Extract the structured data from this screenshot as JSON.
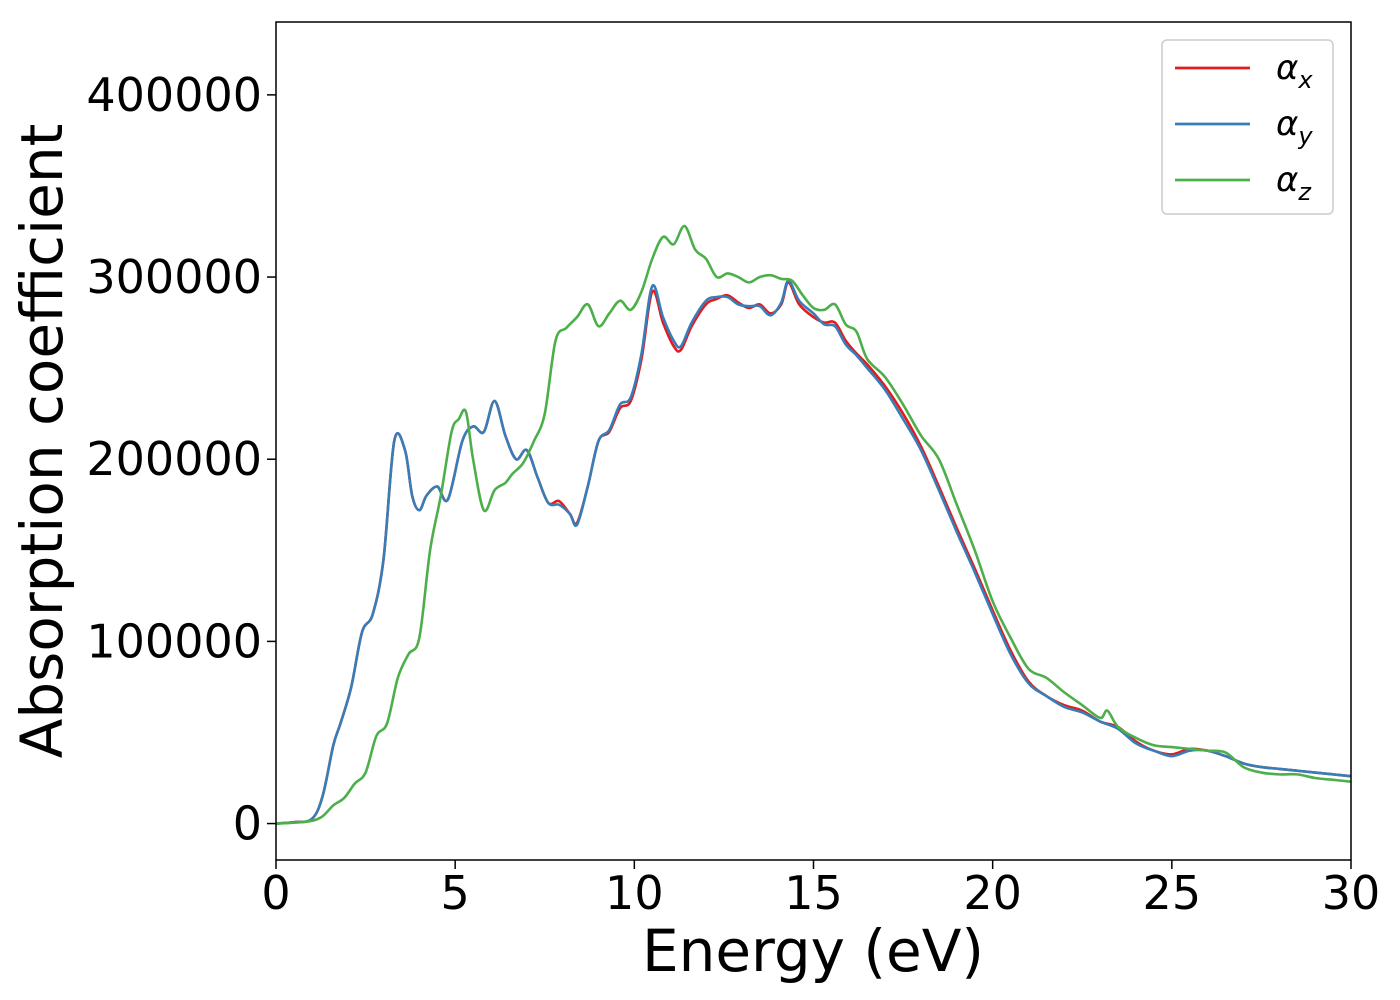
{
  "chart_data": {
    "type": "line",
    "title": "",
    "xlabel": "Energy (eV)",
    "ylabel": "Absorption coefficient",
    "xlim": [
      0,
      30
    ],
    "ylim": [
      -20000,
      440000
    ],
    "xticks": [
      0,
      5,
      10,
      15,
      20,
      25,
      30
    ],
    "xtick_labels": [
      "0",
      "5",
      "10",
      "15",
      "20",
      "25",
      "30"
    ],
    "yticks": [
      0,
      100000,
      200000,
      300000,
      400000
    ],
    "ytick_labels": [
      "0",
      "100000",
      "200000",
      "300000",
      "400000"
    ],
    "grid": false,
    "legend_position": "top-right",
    "series": [
      {
        "name": "αx",
        "symbol": "α",
        "subscript": "x",
        "color": "#e41a1c",
        "x": [
          0,
          0.5,
          1,
          1.3,
          1.6,
          1.8,
          2.1,
          2.4,
          2.7,
          3,
          3.3,
          3.6,
          3.8,
          4,
          4.2,
          4.5,
          4.8,
          5.2,
          5.5,
          5.8,
          6.1,
          6.4,
          6.7,
          7,
          7.3,
          7.6,
          7.9,
          8.2,
          8.4,
          8.7,
          9,
          9.3,
          9.6,
          9.9,
          10.2,
          10.5,
          10.8,
          11.1,
          11.3,
          11.6,
          12,
          12.3,
          12.6,
          12.9,
          13.2,
          13.5,
          13.8,
          14.1,
          14.3,
          14.6,
          15,
          15.3,
          15.6,
          15.9,
          16.2,
          16.5,
          17,
          17.5,
          18,
          18.5,
          19,
          19.5,
          20,
          20.5,
          21,
          21.5,
          22,
          22.5,
          23,
          23.5,
          24,
          24.5,
          25,
          25.5,
          26,
          26.5,
          27,
          27.5,
          28,
          28.5,
          29,
          29.5,
          30
        ],
        "y": [
          0,
          800,
          2500,
          15000,
          43000,
          55000,
          75000,
          105000,
          115000,
          145000,
          210000,
          205000,
          180000,
          172000,
          180000,
          185000,
          178000,
          210000,
          218000,
          215000,
          232000,
          213000,
          200000,
          205000,
          190000,
          176000,
          177000,
          170000,
          165000,
          185000,
          210000,
          215000,
          228000,
          232000,
          255000,
          292000,
          275000,
          262000,
          260000,
          273000,
          285000,
          288000,
          290000,
          286000,
          283000,
          285000,
          280000,
          285000,
          297000,
          285000,
          278000,
          275000,
          275000,
          265000,
          258000,
          252000,
          240000,
          225000,
          207000,
          185000,
          162000,
          140000,
          117000,
          95000,
          78000,
          70000,
          65000,
          62000,
          56000,
          53000,
          45000,
          40000,
          38000,
          41000,
          40000,
          37000,
          33000,
          31000,
          30000,
          29000,
          28000,
          27000,
          26000
        ],
        "values_note": ""
      },
      {
        "name": "αy",
        "symbol": "α",
        "subscript": "y",
        "color": "#377eb8",
        "x": [
          0,
          0.5,
          1,
          1.3,
          1.6,
          1.8,
          2.1,
          2.4,
          2.7,
          3,
          3.3,
          3.6,
          3.8,
          4,
          4.2,
          4.5,
          4.8,
          5.2,
          5.5,
          5.8,
          6.1,
          6.4,
          6.7,
          7,
          7.3,
          7.6,
          7.9,
          8.2,
          8.4,
          8.7,
          9,
          9.3,
          9.6,
          9.9,
          10.2,
          10.5,
          10.8,
          11.1,
          11.3,
          11.6,
          12,
          12.3,
          12.6,
          12.9,
          13.2,
          13.5,
          13.8,
          14.1,
          14.3,
          14.6,
          15,
          15.3,
          15.6,
          15.9,
          16.2,
          16.5,
          17,
          17.5,
          18,
          18.5,
          19,
          19.5,
          20,
          20.5,
          21,
          21.5,
          22,
          22.5,
          23,
          23.5,
          24,
          24.5,
          25,
          25.5,
          26,
          26.5,
          27,
          27.5,
          28,
          28.5,
          29,
          29.5,
          30
        ],
        "y": [
          0,
          800,
          2500,
          15000,
          43000,
          55000,
          75000,
          105000,
          115000,
          145000,
          210000,
          205000,
          180000,
          172000,
          180000,
          185000,
          178000,
          210000,
          218000,
          215000,
          232000,
          213000,
          200000,
          205000,
          190000,
          176000,
          175000,
          170000,
          164000,
          185000,
          210000,
          216000,
          230000,
          234000,
          258000,
          295000,
          278000,
          265000,
          262000,
          275000,
          287000,
          289000,
          289000,
          285000,
          284000,
          284000,
          279000,
          286000,
          298000,
          287000,
          280000,
          274000,
          273000,
          263000,
          257000,
          250000,
          238000,
          222000,
          205000,
          183000,
          160000,
          138000,
          115000,
          93000,
          77000,
          70000,
          64000,
          61000,
          56000,
          52000,
          44000,
          40000,
          37000,
          40000,
          40000,
          37000,
          33000,
          31000,
          30000,
          29000,
          28000,
          27000,
          26000
        ]
      },
      {
        "name": "αz",
        "symbol": "α",
        "subscript": "z",
        "color": "#4daf4a",
        "x": [
          0,
          0.5,
          1,
          1.3,
          1.6,
          1.9,
          2.2,
          2.5,
          2.8,
          3.1,
          3.4,
          3.7,
          4,
          4.3,
          4.6,
          4.9,
          5.1,
          5.3,
          5.5,
          5.8,
          6.1,
          6.4,
          6.6,
          6.9,
          7.2,
          7.5,
          7.8,
          8.1,
          8.4,
          8.7,
          9,
          9.3,
          9.6,
          9.9,
          10.2,
          10.5,
          10.8,
          11.1,
          11.4,
          11.7,
          12,
          12.3,
          12.6,
          12.9,
          13.2,
          13.5,
          13.8,
          14.1,
          14.4,
          14.7,
          15,
          15.3,
          15.6,
          15.9,
          16.2,
          16.5,
          17,
          17.5,
          18,
          18.5,
          19,
          19.5,
          20,
          20.5,
          21,
          21.5,
          22,
          22.5,
          23,
          23.2,
          23.5,
          24,
          24.5,
          25,
          25.5,
          26,
          26.5,
          27,
          27.5,
          28,
          28.5,
          29,
          29.5,
          30
        ],
        "y": [
          0,
          500,
          1500,
          4000,
          10000,
          14000,
          22000,
          28000,
          48000,
          55000,
          80000,
          93000,
          102000,
          150000,
          180000,
          215000,
          222000,
          226000,
          200000,
          172000,
          183000,
          187000,
          192000,
          198000,
          210000,
          225000,
          265000,
          272000,
          278000,
          285000,
          273000,
          280000,
          287000,
          282000,
          292000,
          310000,
          322000,
          318000,
          328000,
          315000,
          310000,
          300000,
          302000,
          300000,
          297000,
          300000,
          301000,
          299000,
          298000,
          290000,
          283000,
          282000,
          285000,
          274000,
          270000,
          255000,
          245000,
          230000,
          213000,
          200000,
          175000,
          150000,
          122000,
          102000,
          85000,
          80000,
          72000,
          65000,
          58000,
          62000,
          53000,
          47000,
          43000,
          42000,
          41000,
          40000,
          39000,
          31000,
          28000,
          27000,
          27000,
          25000,
          24000,
          23000
        ]
      }
    ]
  }
}
